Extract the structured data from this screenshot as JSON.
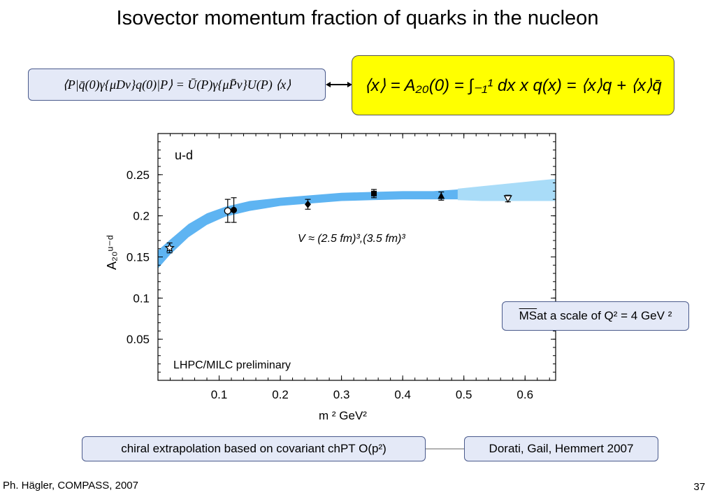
{
  "slide": {
    "title": "Isovector momentum fraction of quarks in the nucleon",
    "formula_left": "⟨P|q̄(0)γ{μDν}q(0)|P⟩ = Ū(P)γ{μP̄ν}U(P) ⟨x⟩",
    "formula_right": "⟨x⟩ = A₂₀(0) = ∫₋₁¹ dx x q(x) = ⟨x⟩q + ⟨x⟩q̄",
    "ms_box": {
      "overlined": "MS",
      "rest": " at a scale of Q² = 4 GeV ²"
    },
    "chiral_box": "chiral extrapolation based on covariant chPT O(p²)",
    "dorati_box": "Dorati, Gail, Hemmert 2007",
    "footer_left": "Ph. Hägler, COMPASS, 2007",
    "page_number": "37"
  },
  "chart_data": {
    "type": "scatter",
    "plot_label": "u-d",
    "annotation_volume": "V ≈ (2.5 fm)³,(3.5 fm)³",
    "annotation_source": "LHPC/MILC preliminary",
    "xlabel": "m  ² GeV²",
    "ylabel": "A₂₀ᵘ⁻ᵈ",
    "xlim": [
      0.0,
      0.65
    ],
    "ylim": [
      0.0,
      0.3
    ],
    "xticks": [
      0.1,
      0.2,
      0.3,
      0.4,
      0.5,
      0.6
    ],
    "xtick_labels": [
      "0.1",
      "0.2",
      "0.3",
      "0.4",
      "0.5",
      "0.6"
    ],
    "yticks": [
      0.05,
      0.1,
      0.15,
      0.2,
      0.25
    ],
    "ytick_labels": [
      "0.05",
      "0.1",
      "0.15",
      "0.2",
      "0.25"
    ],
    "points": [
      {
        "x": 0.019,
        "y": 0.161,
        "err": 0.006,
        "marker": "star"
      },
      {
        "x": 0.114,
        "y": 0.206,
        "err": 0.014,
        "marker": "open-circle"
      },
      {
        "x": 0.124,
        "y": 0.207,
        "err": 0.015,
        "marker": "filled-circle"
      },
      {
        "x": 0.245,
        "y": 0.214,
        "err": 0.006,
        "marker": "diamond"
      },
      {
        "x": 0.353,
        "y": 0.227,
        "err": 0.005,
        "marker": "square"
      },
      {
        "x": 0.463,
        "y": 0.224,
        "err": 0.005,
        "marker": "triangle"
      },
      {
        "x": 0.572,
        "y": 0.221,
        "err": 0.004,
        "marker": "open-triangle-down"
      }
    ],
    "band": {
      "x": [
        0.0,
        0.02,
        0.05,
        0.08,
        0.11,
        0.15,
        0.2,
        0.25,
        0.3,
        0.35,
        0.4,
        0.45,
        0.49
      ],
      "center": [
        0.147,
        0.162,
        0.182,
        0.196,
        0.205,
        0.212,
        0.217,
        0.22,
        0.223,
        0.224,
        0.225,
        0.225,
        0.226
      ],
      "half_width": [
        0.011,
        0.009,
        0.008,
        0.007,
        0.006,
        0.006,
        0.005,
        0.005,
        0.005,
        0.005,
        0.005,
        0.005,
        0.006
      ],
      "color": "#5eb4f2"
    },
    "band_extension": {
      "x": [
        0.49,
        0.53,
        0.57,
        0.61,
        0.65
      ],
      "upper": [
        0.233,
        0.236,
        0.239,
        0.242,
        0.245
      ],
      "lower": [
        0.219,
        0.218,
        0.218,
        0.218,
        0.218
      ],
      "color": "#a9dcf8"
    }
  }
}
